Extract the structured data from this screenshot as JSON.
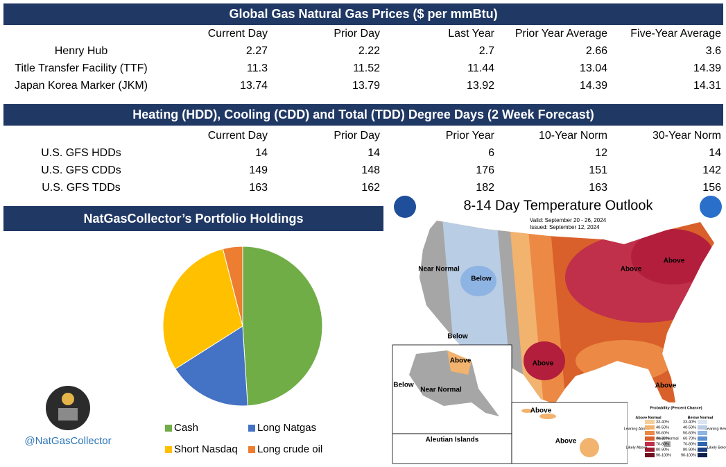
{
  "prices": {
    "title": "Global Gas Natural Gas Prices ($ per mmBtu)",
    "columns": [
      "Current Day",
      "Prior Day",
      "Last Year",
      "Prior Year Average",
      "Five-Year Average"
    ],
    "rows": [
      {
        "label": "Henry Hub",
        "values": [
          2.27,
          2.22,
          2.7,
          2.66,
          3.6
        ]
      },
      {
        "label": "Title Transfer Facility (TTF)",
        "values": [
          11.3,
          11.52,
          11.44,
          13.04,
          14.39
        ]
      },
      {
        "label": "Japan Korea Marker (JKM)",
        "values": [
          13.74,
          13.79,
          13.92,
          14.39,
          14.31
        ]
      }
    ]
  },
  "degree_days": {
    "title": "Heating (HDD), Cooling (CDD) and Total (TDD) Degree Days (2 Week Forecast)",
    "columns": [
      "Current Day",
      "Prior Day",
      "Prior Year",
      "10-Year Norm",
      "30-Year Norm"
    ],
    "rows": [
      {
        "label": "U.S. GFS HDDs",
        "values": [
          14,
          14,
          6,
          12,
          14
        ]
      },
      {
        "label": "U.S. GFS CDDs",
        "values": [
          149,
          148,
          176,
          151,
          142
        ]
      },
      {
        "label": "U.S. GFS TDDs",
        "values": [
          163,
          162,
          182,
          163,
          156
        ]
      }
    ]
  },
  "portfolio": {
    "title": "NatGasCollector’s Portfolio Holdings",
    "handle": "@NatGasCollector"
  },
  "chart_data": {
    "type": "pie",
    "categories": [
      "Cash",
      "Long Natgas",
      "Short Nasdaq",
      "Long crude oil"
    ],
    "values": [
      49,
      17,
      30,
      4
    ],
    "colors": [
      "#70ad47",
      "#4472c4",
      "#ffc000",
      "#ed7d31"
    ]
  },
  "map": {
    "title": "8-14 Day Temperature Outlook",
    "valid": "Valid:  September 20 - 26, 2024",
    "issued": "Issued:  September 12, 2024",
    "labels": [
      "Near Normal",
      "Below",
      "Below",
      "Above",
      "Above",
      "Above",
      "Above",
      "Above",
      "Below",
      "Near Normal",
      "Above",
      "Above",
      "Aleutian Islands"
    ],
    "legend": {
      "title": "Probability (Percent Chance)",
      "above": "Above Normal",
      "below": "Below Normal",
      "leaning_above": "Leaning Above",
      "likely_above": "Likely Above",
      "near": "Near Normal",
      "leaning_below": "Leaning Below",
      "likely_below": "Likely Below",
      "ranges": [
        "33-40%",
        "40-50%",
        "50-60%",
        "60-70%",
        "70-80%",
        "80-90%",
        "90-100%"
      ]
    }
  }
}
